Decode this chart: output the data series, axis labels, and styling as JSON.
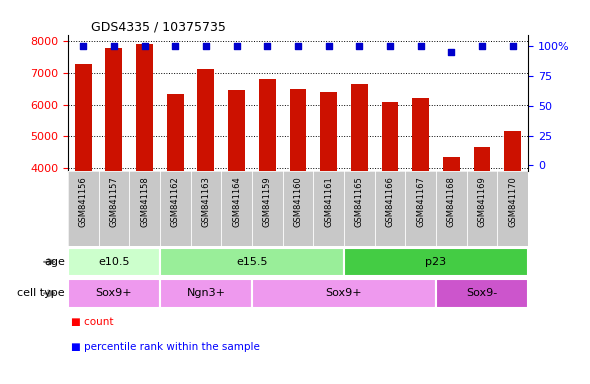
{
  "title": "GDS4335 / 10375735",
  "samples": [
    "GSM841156",
    "GSM841157",
    "GSM841158",
    "GSM841162",
    "GSM841163",
    "GSM841164",
    "GSM841159",
    "GSM841160",
    "GSM841161",
    "GSM841165",
    "GSM841166",
    "GSM841167",
    "GSM841168",
    "GSM841169",
    "GSM841170"
  ],
  "counts": [
    7270,
    7770,
    7900,
    6340,
    7110,
    6450,
    6810,
    6500,
    6390,
    6650,
    6080,
    6220,
    4360,
    4670,
    5160
  ],
  "percentile_ranks": [
    100,
    100,
    100,
    100,
    100,
    100,
    100,
    100,
    100,
    100,
    100,
    100,
    95,
    100,
    100
  ],
  "ylim_left": [
    3900,
    8200
  ],
  "ylim_right": [
    -5,
    110
  ],
  "yticks_left": [
    4000,
    5000,
    6000,
    7000,
    8000
  ],
  "yticks_right": [
    0,
    25,
    50,
    75,
    100
  ],
  "ytick_labels_right": [
    "0",
    "25",
    "50",
    "75",
    "100%"
  ],
  "bar_color": "#cc1100",
  "scatter_color": "#0000cc",
  "age_groups": [
    {
      "label": "e10.5",
      "start": 0,
      "end": 3,
      "color": "#ccffcc"
    },
    {
      "label": "e15.5",
      "start": 3,
      "end": 9,
      "color": "#99ee99"
    },
    {
      "label": "p23",
      "start": 9,
      "end": 15,
      "color": "#44cc44"
    }
  ],
  "cell_type_groups": [
    {
      "label": "Sox9+",
      "start": 0,
      "end": 3,
      "color": "#ee99ee"
    },
    {
      "label": "Ngn3+",
      "start": 3,
      "end": 6,
      "color": "#ee99ee"
    },
    {
      "label": "Sox9+",
      "start": 6,
      "end": 12,
      "color": "#ee99ee"
    },
    {
      "label": "Sox9-",
      "start": 12,
      "end": 15,
      "color": "#cc55cc"
    }
  ],
  "age_label": "age",
  "cell_type_label": "cell type",
  "legend_count_label": "count",
  "legend_percentile_label": "percentile rank within the sample",
  "background_color": "#ffffff",
  "xticklabel_bg": "#c8c8c8"
}
